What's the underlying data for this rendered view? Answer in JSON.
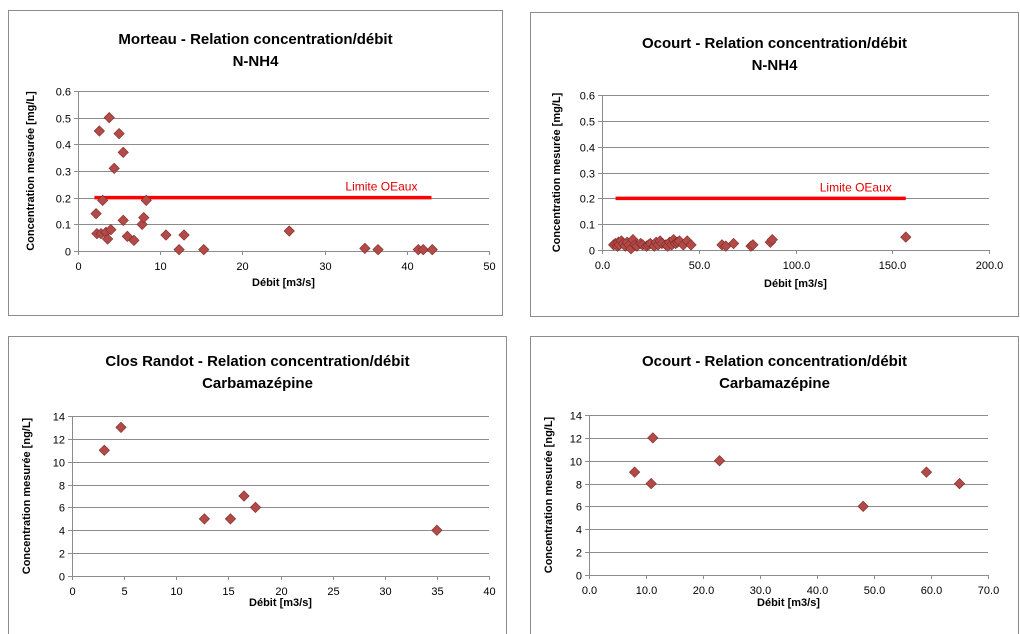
{
  "colors": {
    "marker": "#b24a48",
    "marker_edge": "#7f2a28",
    "gridline": "#8c8c8c",
    "limit_line": "#ff0000",
    "annotation": "#e00000",
    "frame": "#8c8c8c"
  },
  "chart_data": [
    {
      "type": "scatter",
      "title": [
        "Morteau - Relation concentration/débit",
        "N-NH4"
      ],
      "xlabel": "Débit [m3/s]",
      "ylabel": "Concentration mesurée [mg/L]",
      "xlim": [
        0,
        50
      ],
      "ylim": [
        0,
        0.6
      ],
      "xticks": [
        0,
        10,
        20,
        30,
        40,
        50
      ],
      "yticks": [
        0,
        0.1,
        0.2,
        0.3,
        0.4,
        0.5,
        0.6
      ],
      "xtick_labels": [
        "0",
        "10",
        "20",
        "30",
        "40",
        "50"
      ],
      "ytick_labels": [
        "0",
        "0.1",
        "0.2",
        "0.3",
        "0.4",
        "0.5",
        "0.6"
      ],
      "grid": true,
      "points": [
        [
          2.3,
          0.065
        ],
        [
          2.2,
          0.14
        ],
        [
          2.6,
          0.45
        ],
        [
          2.8,
          0.065
        ],
        [
          3.0,
          0.19
        ],
        [
          3.4,
          0.07
        ],
        [
          3.6,
          0.045
        ],
        [
          3.8,
          0.5
        ],
        [
          4.0,
          0.08
        ],
        [
          4.4,
          0.31
        ],
        [
          5.0,
          0.44
        ],
        [
          5.5,
          0.37
        ],
        [
          5.5,
          0.115
        ],
        [
          6.0,
          0.055
        ],
        [
          6.8,
          0.04
        ],
        [
          7.8,
          0.1
        ],
        [
          8.0,
          0.125
        ],
        [
          8.3,
          0.19
        ],
        [
          10.7,
          0.06
        ],
        [
          12.3,
          0.005
        ],
        [
          12.9,
          0.06
        ],
        [
          15.3,
          0.005
        ],
        [
          25.7,
          0.075
        ],
        [
          34.9,
          0.01
        ],
        [
          36.5,
          0.005
        ],
        [
          41.4,
          0.005
        ],
        [
          42.0,
          0.005
        ],
        [
          43.1,
          0.005
        ]
      ],
      "limit": {
        "y": 0.2,
        "x_start": 2,
        "x_end": 43,
        "label": "Limite OEaux"
      }
    },
    {
      "type": "scatter",
      "title": [
        "Ocourt - Relation concentration/débit",
        "N-NH4"
      ],
      "xlabel": "Débit [m3/s]",
      "ylabel": "Concentration mesurée [mg/L]",
      "xlim": [
        0,
        200
      ],
      "ylim": [
        0,
        0.6
      ],
      "xticks": [
        0,
        50,
        100,
        150,
        200
      ],
      "yticks": [
        0,
        0.1,
        0.2,
        0.3,
        0.4,
        0.5,
        0.6
      ],
      "xtick_labels": [
        "0.0",
        "50.0",
        "100.0",
        "150.0",
        "200.0"
      ],
      "ytick_labels": [
        "0",
        "0.1",
        "0.2",
        "0.3",
        "0.4",
        "0.5",
        "0.6"
      ],
      "grid": true,
      "points": [
        [
          6,
          0.02
        ],
        [
          7,
          0.025
        ],
        [
          8,
          0.015
        ],
        [
          8.5,
          0.03
        ],
        [
          9,
          0.02
        ],
        [
          10,
          0.035
        ],
        [
          11,
          0.025
        ],
        [
          12,
          0.015
        ],
        [
          13,
          0.03
        ],
        [
          14,
          0.02
        ],
        [
          15,
          0.005
        ],
        [
          16,
          0.04
        ],
        [
          17,
          0.02
        ],
        [
          18,
          0.015
        ],
        [
          20,
          0.025
        ],
        [
          21,
          0.02
        ],
        [
          23,
          0.015
        ],
        [
          24,
          0.02
        ],
        [
          25,
          0.025
        ],
        [
          27,
          0.015
        ],
        [
          28,
          0.03
        ],
        [
          29,
          0.02
        ],
        [
          30,
          0.035
        ],
        [
          31,
          0.025
        ],
        [
          33,
          0.02
        ],
        [
          34,
          0.015
        ],
        [
          35,
          0.03
        ],
        [
          36,
          0.02
        ],
        [
          37,
          0.04
        ],
        [
          38,
          0.025
        ],
        [
          39,
          0.03
        ],
        [
          40,
          0.035
        ],
        [
          42,
          0.02
        ],
        [
          44,
          0.035
        ],
        [
          46,
          0.02
        ],
        [
          62,
          0.02
        ],
        [
          64,
          0.015
        ],
        [
          68,
          0.025
        ],
        [
          77,
          0.015
        ],
        [
          78,
          0.02
        ],
        [
          87,
          0.03
        ],
        [
          88,
          0.04
        ],
        [
          157,
          0.05
        ]
      ],
      "limit": {
        "y": 0.2,
        "x_start": 7,
        "x_end": 157,
        "label": "Limite OEaux"
      }
    },
    {
      "type": "scatter",
      "title": [
        "Clos Randot - Relation concentration/débit",
        "Carbamazépine"
      ],
      "xlabel": "Débit [m3/s]",
      "ylabel": "Concentration mesurée [ng/L]",
      "xlim": [
        0,
        40
      ],
      "ylim": [
        0,
        14
      ],
      "xticks": [
        0,
        5,
        10,
        15,
        20,
        25,
        30,
        35,
        40
      ],
      "yticks": [
        0,
        2,
        4,
        6,
        8,
        10,
        12,
        14
      ],
      "xtick_labels": [
        "0",
        "5",
        "10",
        "15",
        "20",
        "25",
        "30",
        "35",
        "40"
      ],
      "ytick_labels": [
        "0",
        "2",
        "4",
        "6",
        "8",
        "10",
        "12",
        "14"
      ],
      "grid": true,
      "points": [
        [
          3.1,
          11
        ],
        [
          4.7,
          13
        ],
        [
          12.7,
          5
        ],
        [
          15.2,
          5
        ],
        [
          16.5,
          7
        ],
        [
          17.6,
          6
        ],
        [
          35.0,
          4
        ]
      ]
    },
    {
      "type": "scatter",
      "title": [
        "Ocourt - Relation concentration/débit",
        "Carbamazépine"
      ],
      "xlabel": "Débit [m3/s]",
      "ylabel": "Concentration mesurée [ng/L]",
      "xlim": [
        0,
        70
      ],
      "ylim": [
        0,
        14
      ],
      "xticks": [
        0,
        10,
        20,
        30,
        40,
        50,
        60,
        70
      ],
      "yticks": [
        0,
        2,
        4,
        6,
        8,
        10,
        12,
        14
      ],
      "xtick_labels": [
        "0.0",
        "10.0",
        "20.0",
        "30.0",
        "40.0",
        "50.0",
        "60.0",
        "70.0"
      ],
      "ytick_labels": [
        "0",
        "2",
        "4",
        "6",
        "8",
        "10",
        "12",
        "14"
      ],
      "grid": true,
      "points": [
        [
          8.0,
          9
        ],
        [
          10.9,
          8
        ],
        [
          11.2,
          12
        ],
        [
          22.9,
          10
        ],
        [
          48.1,
          6
        ],
        [
          59.2,
          9
        ],
        [
          65.0,
          8
        ]
      ]
    }
  ]
}
